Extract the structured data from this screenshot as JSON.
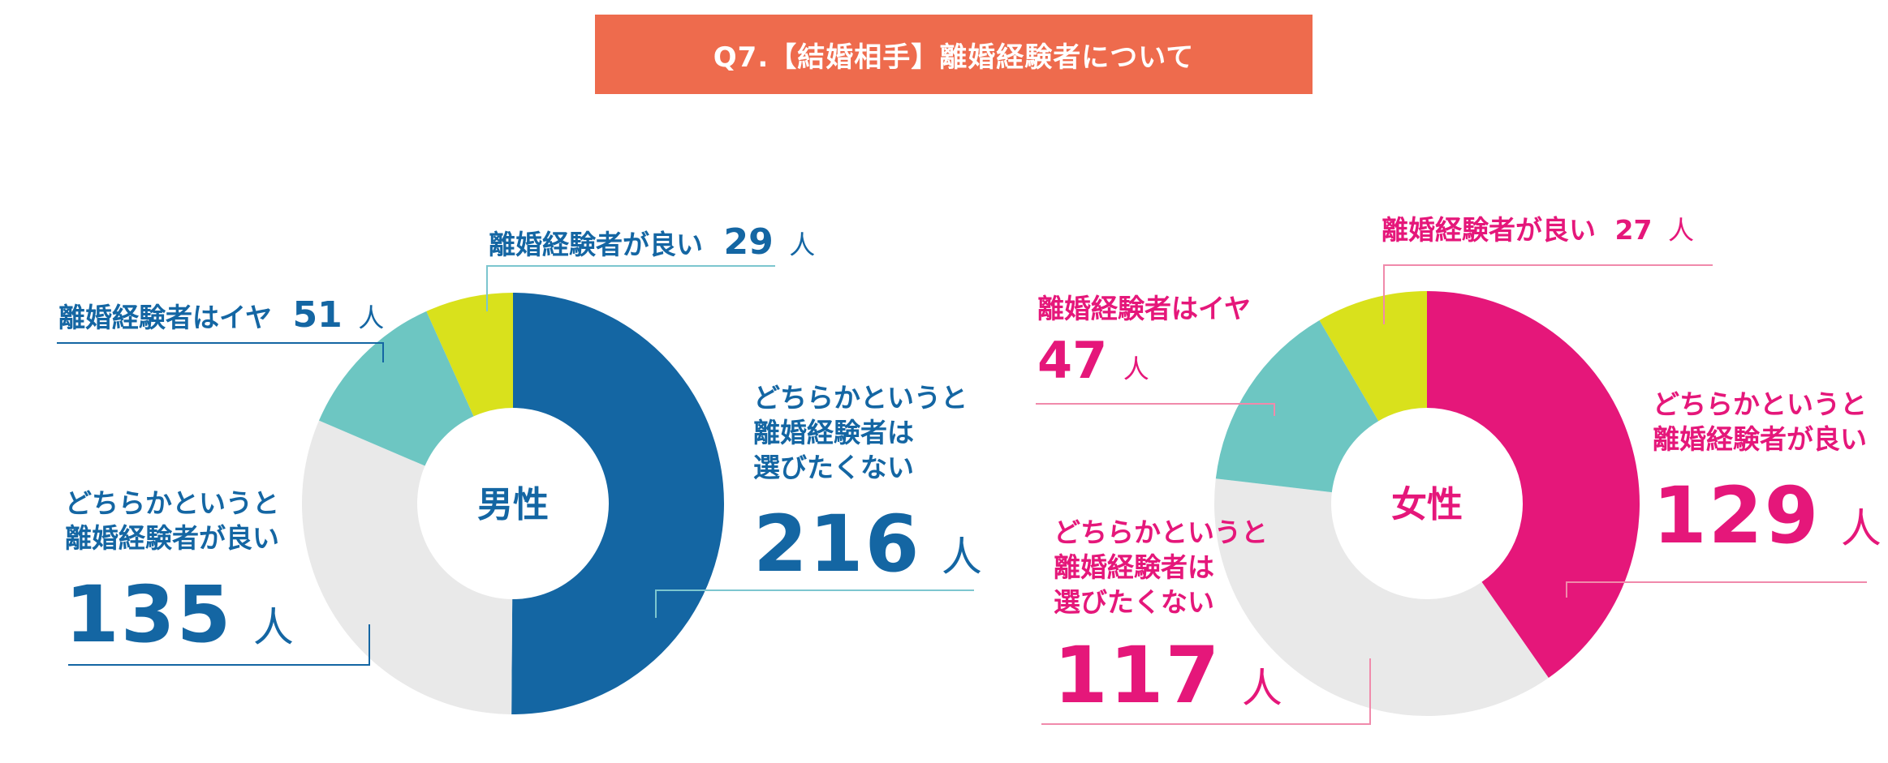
{
  "title": "Q7.【結婚相手】離婚経験者について",
  "colors": {
    "banner": "#ee6b4d",
    "male_text": "#1466a3",
    "female_text": "#e5177a",
    "lime": "#d9e11c",
    "teal": "#6dc6c2",
    "lightgray": "#e9e9e9",
    "male_blue": "#1466a3",
    "female_pink": "#e5177a",
    "male_line": "#7cc6cf",
    "female_line": "#f08aab"
  },
  "chart_data": [
    {
      "type": "pie",
      "center_label": "男性",
      "unit": "人",
      "slices": [
        {
          "label": "どちらかというと離婚経験者は選びたくない",
          "value": 216,
          "color": "#1466a3"
        },
        {
          "label": "どちらかというと離婚経験者が良い",
          "value": 135,
          "color": "#e9e9e9"
        },
        {
          "label": "離婚経験者はイヤ",
          "value": 51,
          "color": "#6dc6c2"
        },
        {
          "label": "離婚経験者が良い",
          "value": 29,
          "color": "#d9e11c"
        }
      ]
    },
    {
      "type": "pie",
      "center_label": "女性",
      "unit": "人",
      "slices": [
        {
          "label": "どちらかというと離婚経験者が良い",
          "value": 129,
          "color": "#e5177a"
        },
        {
          "label": "どちらかというと離婚経験者は選びたくない",
          "value": 117,
          "color": "#e9e9e9"
        },
        {
          "label": "離婚経験者はイヤ",
          "value": 47,
          "color": "#6dc6c2"
        },
        {
          "label": "離婚経験者が良い",
          "value": 27,
          "color": "#d9e11c"
        }
      ]
    }
  ],
  "labels": {
    "male": {
      "good_text": "離婚経験者が良い",
      "good_value": "29",
      "no_text": "離婚経験者はイヤ",
      "no_value": "51",
      "rather_good_line1": "どちらかというと",
      "rather_good_line2": "離婚経験者が良い",
      "rather_good_value": "135",
      "rather_no_line1": "どちらかというと",
      "rather_no_line2": "離婚経験者は",
      "rather_no_line3": "選びたくない",
      "rather_no_value": "216",
      "unit": "人"
    },
    "female": {
      "good_text": "離婚経験者が良い",
      "good_value": "27",
      "no_text": "離婚経験者はイヤ",
      "no_value": "47",
      "rather_good_line1": "どちらかというと",
      "rather_good_line2": "離婚経験者が良い",
      "rather_good_value": "129",
      "rather_no_line1": "どちらかというと",
      "rather_no_line2": "離婚経験者は",
      "rather_no_line3": "選びたくない",
      "rather_no_value": "117",
      "unit": "人"
    }
  }
}
